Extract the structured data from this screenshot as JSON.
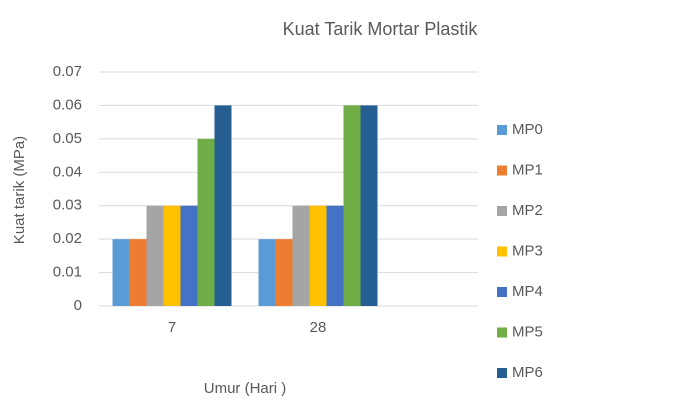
{
  "chart_data": {
    "type": "bar",
    "title": "Kuat Tarik Mortar Plastik",
    "x_label": "Umur (Hari )",
    "y_label": "Kuat tarik (MPa)",
    "categories": [
      "7",
      "28"
    ],
    "series": [
      {
        "name": "MP0",
        "color": "#5b9bd5",
        "values": [
          0.02,
          0.02
        ]
      },
      {
        "name": "MP1",
        "color": "#ed7d31",
        "values": [
          0.02,
          0.02
        ]
      },
      {
        "name": "MP2",
        "color": "#a5a5a5",
        "values": [
          0.03,
          0.03
        ]
      },
      {
        "name": "MP3",
        "color": "#ffc000",
        "values": [
          0.03,
          0.03
        ]
      },
      {
        "name": "MP4",
        "color": "#4472c4",
        "values": [
          0.03,
          0.03
        ]
      },
      {
        "name": "MP5",
        "color": "#70ad47",
        "values": [
          0.05,
          0.06
        ]
      },
      {
        "name": "MP6",
        "color": "#255e91",
        "values": [
          0.06,
          0.06
        ]
      }
    ],
    "ylim": [
      0,
      0.07
    ],
    "yticks": [
      0,
      0.01,
      0.02,
      0.03,
      0.04,
      0.05,
      0.06,
      0.07
    ],
    "grid": true,
    "legend": "right"
  }
}
